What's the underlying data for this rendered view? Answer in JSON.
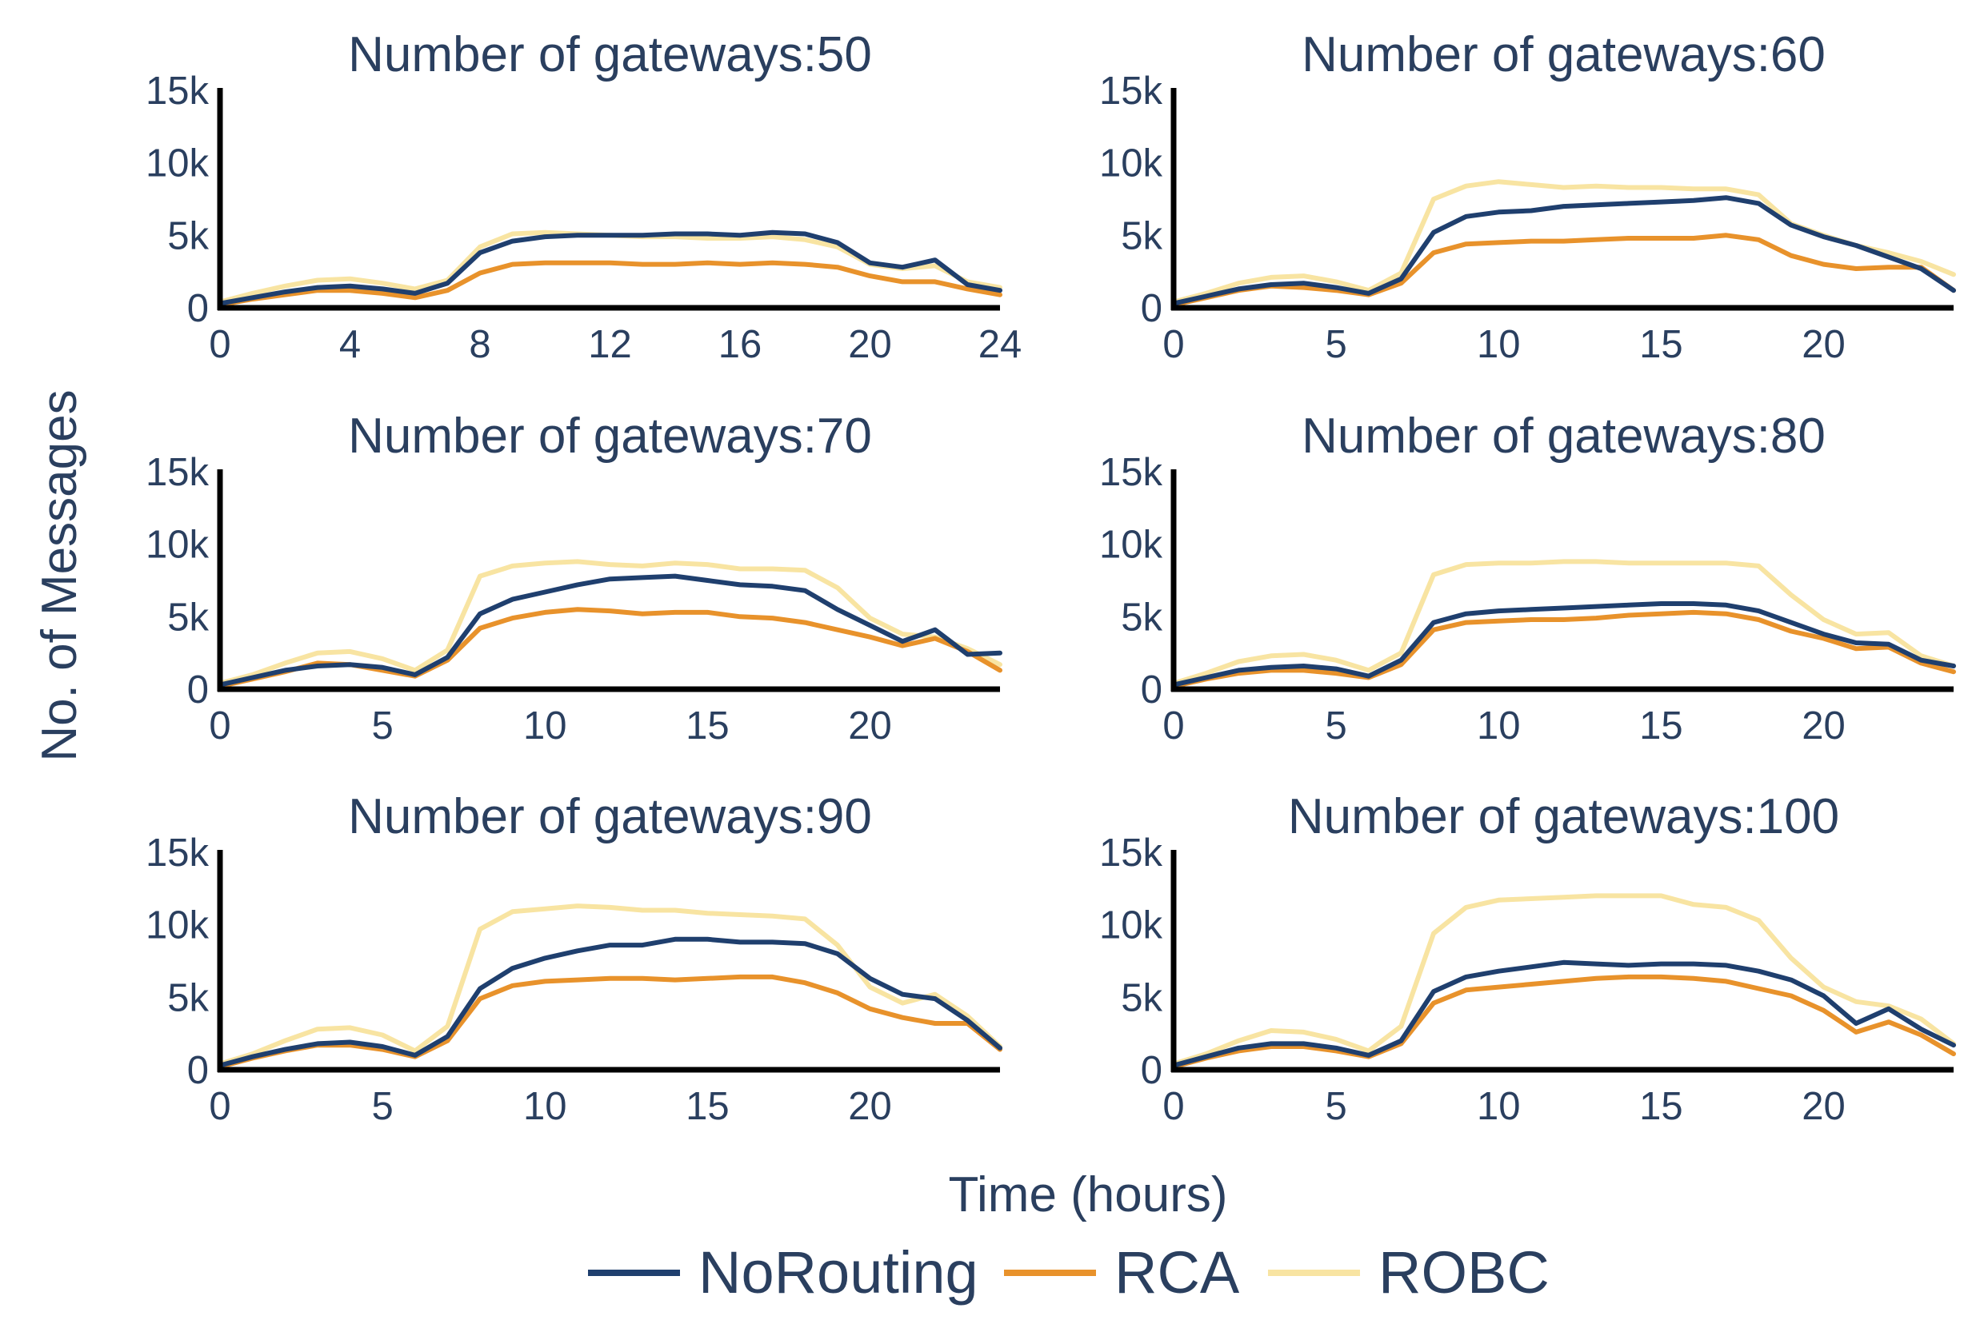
{
  "figure": {
    "xlabel": "Time (hours)",
    "ylabel": "No. of Messages"
  },
  "legend": {
    "placement": "bottom-center",
    "items": [
      {
        "name": "NoRouting",
        "color": "#1f3f6e"
      },
      {
        "name": "RCA",
        "color": "#e8922b"
      },
      {
        "name": "ROBC",
        "color": "#f8e4a2"
      }
    ]
  },
  "chart_data": [
    {
      "type": "line",
      "title": "Number of gateways:50",
      "xlim": [
        0,
        24
      ],
      "ylim": [
        0,
        15000
      ],
      "xticks": [
        0,
        4,
        8,
        12,
        16,
        20,
        24
      ],
      "yticks": [
        0,
        5000,
        10000,
        15000
      ],
      "ytick_labels": [
        "0",
        "5k",
        "10k",
        "15k"
      ],
      "x": [
        0,
        1,
        2,
        3,
        4,
        5,
        6,
        7,
        8,
        9,
        10,
        11,
        12,
        13,
        14,
        15,
        16,
        17,
        18,
        19,
        20,
        21,
        22,
        23,
        24
      ],
      "series": [
        {
          "name": "NoRouting",
          "color": "#1f3f6e",
          "values": [
            300,
            700,
            1100,
            1400,
            1500,
            1300,
            1000,
            1700,
            3800,
            4600,
            4900,
            5000,
            5000,
            5000,
            5100,
            5100,
            5000,
            5200,
            5100,
            4500,
            3100,
            2800,
            3300,
            1600,
            1200
          ]
        },
        {
          "name": "RCA",
          "color": "#e8922b",
          "values": [
            200,
            600,
            900,
            1200,
            1200,
            1000,
            700,
            1200,
            2400,
            3000,
            3100,
            3100,
            3100,
            3000,
            3000,
            3100,
            3000,
            3100,
            3000,
            2800,
            2200,
            1800,
            1800,
            1300,
            900
          ]
        },
        {
          "name": "ROBC",
          "color": "#f8e4a2",
          "values": [
            400,
            1000,
            1500,
            1900,
            2000,
            1700,
            1300,
            1900,
            4200,
            5100,
            5200,
            5100,
            5000,
            4900,
            4900,
            4800,
            4800,
            4900,
            4700,
            4200,
            3000,
            2700,
            2900,
            1800,
            1400
          ]
        }
      ]
    },
    {
      "type": "line",
      "title": "Number of gateways:60",
      "xlim": [
        0,
        24
      ],
      "ylim": [
        0,
        15000
      ],
      "xticks": [
        0,
        5,
        10,
        15,
        20
      ],
      "yticks": [
        0,
        5000,
        10000,
        15000
      ],
      "ytick_labels": [
        "0",
        "5k",
        "10k",
        "15k"
      ],
      "x": [
        0,
        1,
        2,
        3,
        4,
        5,
        6,
        7,
        8,
        9,
        10,
        11,
        12,
        13,
        14,
        15,
        16,
        17,
        18,
        19,
        20,
        21,
        22,
        23,
        24
      ],
      "series": [
        {
          "name": "NoRouting",
          "color": "#1f3f6e",
          "values": [
            300,
            800,
            1300,
            1600,
            1700,
            1400,
            1000,
            2000,
            5200,
            6300,
            6600,
            6700,
            7000,
            7100,
            7200,
            7300,
            7400,
            7600,
            7200,
            5700,
            4900,
            4300,
            3500,
            2700,
            1200
          ]
        },
        {
          "name": "RCA",
          "color": "#e8922b",
          "values": [
            200,
            700,
            1200,
            1500,
            1400,
            1200,
            900,
            1700,
            3800,
            4400,
            4500,
            4600,
            4600,
            4700,
            4800,
            4800,
            4800,
            5000,
            4700,
            3600,
            3000,
            2700,
            2800,
            2800,
            1200
          ]
        },
        {
          "name": "ROBC",
          "color": "#f8e4a2",
          "values": [
            400,
            1000,
            1700,
            2100,
            2200,
            1800,
            1200,
            2400,
            7500,
            8400,
            8700,
            8500,
            8300,
            8400,
            8300,
            8300,
            8200,
            8200,
            7800,
            5800,
            5000,
            4300,
            3800,
            3200,
            2300
          ]
        }
      ]
    },
    {
      "type": "line",
      "title": "Number of gateways:70",
      "xlim": [
        0,
        24
      ],
      "ylim": [
        0,
        15000
      ],
      "xticks": [
        0,
        5,
        10,
        15,
        20
      ],
      "yticks": [
        0,
        5000,
        10000,
        15000
      ],
      "ytick_labels": [
        "0",
        "5k",
        "10k",
        "15k"
      ],
      "x": [
        0,
        1,
        2,
        3,
        4,
        5,
        6,
        7,
        8,
        9,
        10,
        11,
        12,
        13,
        14,
        15,
        16,
        17,
        18,
        19,
        20,
        21,
        22,
        23,
        24
      ],
      "series": [
        {
          "name": "NoRouting",
          "color": "#1f3f6e",
          "values": [
            300,
            800,
            1300,
            1600,
            1700,
            1500,
            1000,
            2200,
            5200,
            6200,
            6700,
            7200,
            7600,
            7700,
            7800,
            7500,
            7200,
            7100,
            6800,
            5500,
            4400,
            3300,
            4100,
            2400,
            2500
          ]
        },
        {
          "name": "RCA",
          "color": "#e8922b",
          "values": [
            200,
            700,
            1200,
            1800,
            1700,
            1300,
            900,
            2000,
            4200,
            4900,
            5300,
            5500,
            5400,
            5200,
            5300,
            5300,
            5000,
            4900,
            4600,
            4100,
            3600,
            3000,
            3500,
            2600,
            1300
          ]
        },
        {
          "name": "ROBC",
          "color": "#f8e4a2",
          "values": [
            400,
            1000,
            1800,
            2500,
            2600,
            2100,
            1300,
            2700,
            7800,
            8500,
            8700,
            8800,
            8600,
            8500,
            8700,
            8600,
            8300,
            8300,
            8200,
            7000,
            4900,
            3800,
            3600,
            2800,
            1700
          ]
        }
      ]
    },
    {
      "type": "line",
      "title": "Number of gateways:80",
      "xlim": [
        0,
        24
      ],
      "ylim": [
        0,
        15000
      ],
      "xticks": [
        0,
        5,
        10,
        15,
        20
      ],
      "yticks": [
        0,
        5000,
        10000,
        15000
      ],
      "ytick_labels": [
        "0",
        "5k",
        "10k",
        "15k"
      ],
      "x": [
        0,
        1,
        2,
        3,
        4,
        5,
        6,
        7,
        8,
        9,
        10,
        11,
        12,
        13,
        14,
        15,
        16,
        17,
        18,
        19,
        20,
        21,
        22,
        23,
        24
      ],
      "series": [
        {
          "name": "NoRouting",
          "color": "#1f3f6e",
          "values": [
            300,
            800,
            1300,
            1500,
            1600,
            1400,
            900,
            2000,
            4600,
            5200,
            5400,
            5500,
            5600,
            5700,
            5800,
            5900,
            5900,
            5800,
            5400,
            4600,
            3800,
            3200,
            3100,
            2000,
            1600
          ]
        },
        {
          "name": "RCA",
          "color": "#e8922b",
          "values": [
            200,
            700,
            1100,
            1300,
            1300,
            1100,
            800,
            1700,
            4100,
            4600,
            4700,
            4800,
            4800,
            4900,
            5100,
            5200,
            5300,
            5200,
            4800,
            4000,
            3500,
            2800,
            2900,
            1800,
            1200
          ]
        },
        {
          "name": "ROBC",
          "color": "#f8e4a2",
          "values": [
            400,
            1100,
            1900,
            2300,
            2400,
            2000,
            1300,
            2500,
            7900,
            8600,
            8700,
            8700,
            8800,
            8800,
            8700,
            8700,
            8700,
            8700,
            8500,
            6500,
            4800,
            3800,
            3900,
            2300,
            1600
          ]
        }
      ]
    },
    {
      "type": "line",
      "title": "Number of gateways:90",
      "xlim": [
        0,
        24
      ],
      "ylim": [
        0,
        15000
      ],
      "xticks": [
        0,
        5,
        10,
        15,
        20
      ],
      "yticks": [
        0,
        5000,
        10000,
        15000
      ],
      "ytick_labels": [
        "0",
        "5k",
        "10k",
        "15k"
      ],
      "x": [
        0,
        1,
        2,
        3,
        4,
        5,
        6,
        7,
        8,
        9,
        10,
        11,
        12,
        13,
        14,
        15,
        16,
        17,
        18,
        19,
        20,
        21,
        22,
        23,
        24
      ],
      "series": [
        {
          "name": "NoRouting",
          "color": "#1f3f6e",
          "values": [
            300,
            900,
            1400,
            1800,
            1900,
            1600,
            1000,
            2300,
            5600,
            7000,
            7700,
            8200,
            8600,
            8600,
            9000,
            9000,
            8800,
            8800,
            8700,
            8000,
            6300,
            5200,
            4900,
            3400,
            1500
          ]
        },
        {
          "name": "RCA",
          "color": "#e8922b",
          "values": [
            200,
            800,
            1300,
            1700,
            1700,
            1400,
            900,
            2000,
            4900,
            5800,
            6100,
            6200,
            6300,
            6300,
            6200,
            6300,
            6400,
            6400,
            6000,
            5300,
            4200,
            3600,
            3200,
            3200,
            1400
          ]
        },
        {
          "name": "ROBC",
          "color": "#f8e4a2",
          "values": [
            400,
            1100,
            2000,
            2800,
            2900,
            2400,
            1300,
            3000,
            9700,
            10900,
            11100,
            11300,
            11200,
            11000,
            11000,
            10800,
            10700,
            10600,
            10400,
            8600,
            5700,
            4600,
            5200,
            3700,
            1600
          ]
        }
      ]
    },
    {
      "type": "line",
      "title": "Number of gateways:100",
      "xlim": [
        0,
        24
      ],
      "ylim": [
        0,
        15000
      ],
      "xticks": [
        0,
        5,
        10,
        15,
        20
      ],
      "yticks": [
        0,
        5000,
        10000,
        15000
      ],
      "ytick_labels": [
        "0",
        "5k",
        "10k",
        "15k"
      ],
      "x": [
        0,
        1,
        2,
        3,
        4,
        5,
        6,
        7,
        8,
        9,
        10,
        11,
        12,
        13,
        14,
        15,
        16,
        17,
        18,
        19,
        20,
        21,
        22,
        23,
        24
      ],
      "series": [
        {
          "name": "NoRouting",
          "color": "#1f3f6e",
          "values": [
            300,
            900,
            1500,
            1800,
            1800,
            1500,
            1000,
            2000,
            5400,
            6400,
            6800,
            7100,
            7400,
            7300,
            7200,
            7300,
            7300,
            7200,
            6800,
            6200,
            5100,
            3200,
            4200,
            2800,
            1700
          ]
        },
        {
          "name": "RCA",
          "color": "#e8922b",
          "values": [
            200,
            800,
            1300,
            1600,
            1600,
            1300,
            900,
            1800,
            4600,
            5500,
            5700,
            5900,
            6100,
            6300,
            6400,
            6400,
            6300,
            6100,
            5600,
            5100,
            4100,
            2600,
            3300,
            2400,
            1100
          ]
        },
        {
          "name": "ROBC",
          "color": "#f8e4a2",
          "values": [
            400,
            1100,
            2000,
            2700,
            2600,
            2100,
            1300,
            3000,
            9400,
            11200,
            11700,
            11800,
            11900,
            12000,
            12000,
            12000,
            11400,
            11200,
            10300,
            7700,
            5700,
            4700,
            4400,
            3500,
            1800
          ]
        }
      ]
    }
  ]
}
